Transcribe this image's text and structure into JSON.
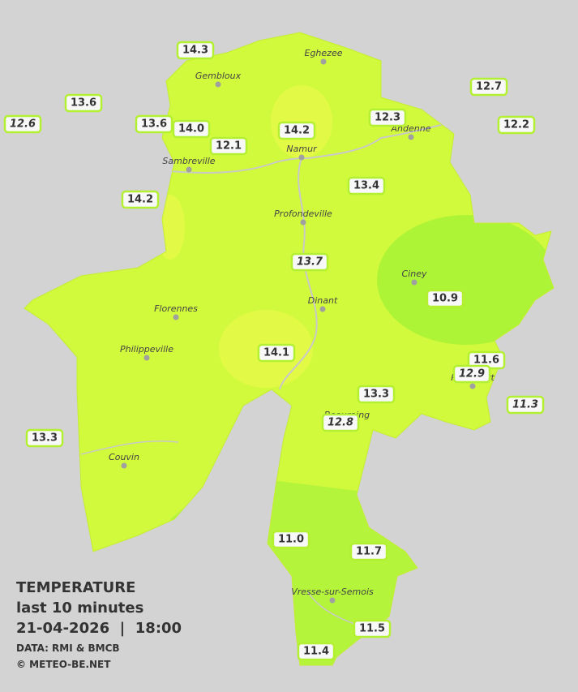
{
  "caption": {
    "title": "TEMPERATURE",
    "subtitle": "last 10 minutes",
    "datetime": "21-04-2026  |  18:00",
    "source": "DATA: RMI & BMCB",
    "copyright": "© METEO-BE.NET"
  },
  "cities": [
    {
      "name": "Eghezee"
    },
    {
      "name": "Gembloux"
    },
    {
      "name": "Andenne"
    },
    {
      "name": "Namur"
    },
    {
      "name": "Sambreville"
    },
    {
      "name": "Profondeville"
    },
    {
      "name": "Ciney"
    },
    {
      "name": "Dinant"
    },
    {
      "name": "Florennes"
    },
    {
      "name": "Philippeville"
    },
    {
      "name": "Rochefort"
    },
    {
      "name": "Beauraing"
    },
    {
      "name": "Couvin"
    },
    {
      "name": "Vresse-sur-Semois"
    }
  ],
  "stations": [
    {
      "value": "14.3",
      "italic": false
    },
    {
      "value": "13.6",
      "italic": false
    },
    {
      "value": "12.6",
      "italic": true
    },
    {
      "value": "13.6",
      "italic": false
    },
    {
      "value": "14.0",
      "italic": false
    },
    {
      "value": "12.1",
      "italic": false
    },
    {
      "value": "14.2",
      "italic": false
    },
    {
      "value": "12.3",
      "italic": false
    },
    {
      "value": "12.7",
      "italic": false
    },
    {
      "value": "12.2",
      "italic": false
    },
    {
      "value": "14.2",
      "italic": false
    },
    {
      "value": "13.4",
      "italic": false
    },
    {
      "value": "13.7",
      "italic": true
    },
    {
      "value": "10.9",
      "italic": false
    },
    {
      "value": "14.1",
      "italic": false
    },
    {
      "value": "11.6",
      "italic": false
    },
    {
      "value": "12.9",
      "italic": true
    },
    {
      "value": "11.3",
      "italic": true
    },
    {
      "value": "13.3",
      "italic": false
    },
    {
      "value": "12.8",
      "italic": true
    },
    {
      "value": "13.3",
      "italic": false
    },
    {
      "value": "11.0",
      "italic": false
    },
    {
      "value": "11.7",
      "italic": false
    },
    {
      "value": "11.5",
      "italic": false
    },
    {
      "value": "11.4",
      "italic": false
    }
  ]
}
